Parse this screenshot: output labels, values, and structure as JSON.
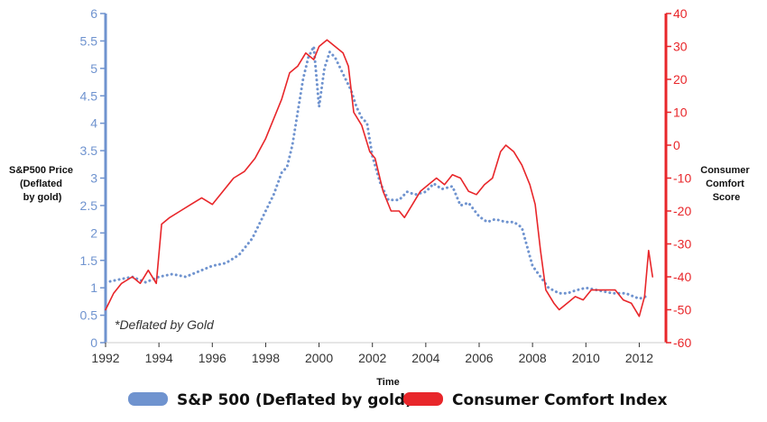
{
  "chart_data": {
    "type": "line",
    "xlabel": "Time",
    "ylabel_left": "S&P500 Price (Deflated by gold)",
    "ylabel_right": "Consumer Comfort Score",
    "note": "*Deflated by Gold",
    "x_ticks": [
      "1992",
      "1994",
      "1996",
      "1998",
      "2000",
      "2002",
      "2004",
      "2006",
      "2008",
      "2010",
      "2012"
    ],
    "y_left_ticks": [
      "0",
      "0.5",
      "1",
      "1.5",
      "2",
      "2.5",
      "3",
      "3.5",
      "4",
      "4.5",
      "5",
      "5.5",
      "6"
    ],
    "y_right_ticks": [
      "40",
      "30",
      "20",
      "10",
      "0",
      "-10",
      "-20",
      "-30",
      "-40",
      "-50",
      "-60"
    ],
    "xlim": [
      1992,
      2013
    ],
    "ylim_left": [
      0,
      6
    ],
    "ylim_right": [
      -60,
      40
    ],
    "grid": false,
    "legend_placement": "bottom",
    "series": [
      {
        "name": "S&P 500 (Deflated by gold)",
        "axis": "left",
        "style": "dotted",
        "color": "#6f93cf",
        "x": [
          1992.0,
          1992.5,
          1993.0,
          1993.5,
          1994.0,
          1994.5,
          1995.0,
          1995.5,
          1996.0,
          1996.5,
          1997.0,
          1997.5,
          1998.0,
          1998.3,
          1998.6,
          1998.8,
          1999.0,
          1999.2,
          1999.4,
          1999.6,
          1999.8,
          2000.0,
          2000.2,
          2000.4,
          2000.6,
          2000.8,
          2001.0,
          2001.2,
          2001.4,
          2001.6,
          2001.8,
          2002.0,
          2002.3,
          2002.6,
          2003.0,
          2003.3,
          2003.6,
          2004.0,
          2004.3,
          2004.6,
          2005.0,
          2005.3,
          2005.6,
          2006.0,
          2006.3,
          2006.6,
          2007.0,
          2007.3,
          2007.6,
          2008.0,
          2008.3,
          2008.6,
          2009.0,
          2009.3,
          2009.6,
          2010.0,
          2010.5,
          2011.0,
          2011.5,
          2012.0,
          2012.3
        ],
        "y": [
          1.1,
          1.15,
          1.2,
          1.1,
          1.2,
          1.25,
          1.2,
          1.3,
          1.4,
          1.45,
          1.6,
          1.9,
          2.4,
          2.7,
          3.1,
          3.2,
          3.6,
          4.2,
          4.8,
          5.2,
          5.4,
          4.3,
          5.0,
          5.3,
          5.2,
          5.0,
          4.8,
          4.6,
          4.3,
          4.1,
          4.0,
          3.4,
          2.9,
          2.6,
          2.6,
          2.75,
          2.7,
          2.75,
          2.9,
          2.8,
          2.85,
          2.5,
          2.55,
          2.3,
          2.2,
          2.25,
          2.2,
          2.2,
          2.1,
          1.4,
          1.2,
          1.0,
          0.9,
          0.9,
          0.95,
          1.0,
          0.95,
          0.9,
          0.9,
          0.8,
          0.85
        ]
      },
      {
        "name": "Consumer Comfort Index",
        "axis": "right",
        "style": "solid",
        "color": "#e8262a",
        "x": [
          1992.0,
          1992.3,
          1992.6,
          1993.0,
          1993.3,
          1993.6,
          1993.9,
          1994.1,
          1994.4,
          1994.8,
          1995.2,
          1995.6,
          1996.0,
          1996.4,
          1996.8,
          1997.2,
          1997.6,
          1998.0,
          1998.3,
          1998.6,
          1998.9,
          1999.2,
          1999.5,
          1999.8,
          2000.0,
          2000.3,
          2000.6,
          2000.9,
          2001.1,
          2001.3,
          2001.6,
          2001.9,
          2002.1,
          2002.4,
          2002.7,
          2003.0,
          2003.2,
          2003.5,
          2003.8,
          2004.1,
          2004.4,
          2004.7,
          2005.0,
          2005.3,
          2005.6,
          2005.9,
          2006.2,
          2006.5,
          2006.8,
          2007.0,
          2007.3,
          2007.6,
          2007.9,
          2008.1,
          2008.3,
          2008.5,
          2008.8,
          2009.0,
          2009.3,
          2009.6,
          2009.9,
          2010.2,
          2010.5,
          2010.8,
          2011.1,
          2011.4,
          2011.7,
          2012.0,
          2012.2,
          2012.35,
          2012.5
        ],
        "y": [
          -50,
          -45,
          -42,
          -40,
          -42,
          -38,
          -42,
          -24,
          -22,
          -20,
          -18,
          -16,
          -18,
          -14,
          -10,
          -8,
          -4,
          2,
          8,
          14,
          22,
          24,
          28,
          26,
          30,
          32,
          30,
          28,
          24,
          10,
          6,
          -2,
          -4,
          -14,
          -20,
          -20,
          -22,
          -18,
          -14,
          -12,
          -10,
          -12,
          -9,
          -10,
          -14,
          -15,
          -12,
          -10,
          -2,
          0,
          -2,
          -6,
          -12,
          -18,
          -32,
          -44,
          -48,
          -50,
          -48,
          -46,
          -47,
          -44,
          -44,
          -44,
          -44,
          -47,
          -48,
          -52,
          -46,
          -32,
          -40
        ]
      }
    ]
  }
}
